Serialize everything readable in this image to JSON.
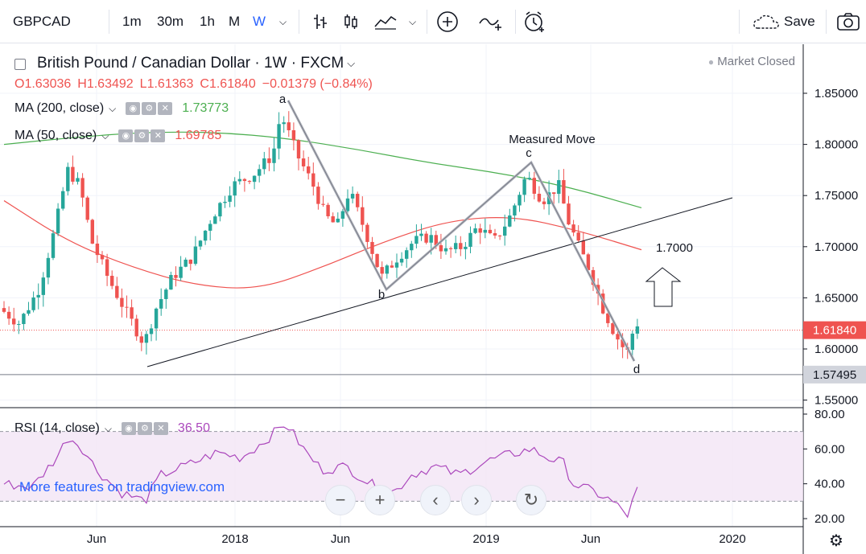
{
  "toolbar": {
    "symbol": "GBPCAD",
    "intervals": [
      "1m",
      "30m",
      "1h",
      "M",
      "W"
    ],
    "active_interval": "W",
    "save_label": "Save"
  },
  "header": {
    "title": "British Pound / Canadian Dollar · 1W · FXCM",
    "market_status": "Market Closed",
    "ohlc": {
      "open": "O1.63036",
      "high": "H1.63492",
      "low": "L1.61363",
      "close": "C1.61840",
      "change": "−0.01379 (−0.84%)"
    }
  },
  "indicators": {
    "ma200": {
      "label": "MA (200, close)",
      "value": "1.73773",
      "color": "#4caf50"
    },
    "ma50": {
      "label": "MA (50, close)",
      "value": "1.69785",
      "color": "#ef5350"
    },
    "rsi": {
      "label": "RSI (14, close)",
      "value": "36.50",
      "color": "#ab47bc"
    }
  },
  "annotations": {
    "a": "a",
    "b": "b",
    "c": "c",
    "d": "d",
    "measured_move": "Measured Move",
    "target": "1.7000"
  },
  "price_axis": {
    "ticks": [
      "1.85000",
      "1.80000",
      "1.75000",
      "1.70000",
      "1.65000",
      "1.60000",
      "1.55000"
    ],
    "last_price": "1.61840",
    "last_price_color": "#ef5350",
    "marker_price": "1.57495"
  },
  "rsi_axis": {
    "ticks": [
      "80.00",
      "60.00",
      "40.00",
      "20.00"
    ]
  },
  "time_axis": {
    "ticks": [
      "Jun",
      "2018",
      "Jun",
      "2019",
      "Jun",
      "2020"
    ]
  },
  "watermark": "More features on tradingview.com",
  "chart_data": {
    "type": "candlestick",
    "title": "British Pound / Canadian Dollar · 1W · FXCM",
    "ylim": [
      1.54,
      1.87
    ],
    "series": [
      {
        "name": "MA (200, close)",
        "values": [
          1.8,
          1.807,
          1.812,
          1.812,
          1.806,
          1.795,
          1.782,
          1.772,
          1.758,
          1.738
        ]
      },
      {
        "name": "MA (50, close)",
        "values": [
          1.745,
          1.705,
          1.68,
          1.662,
          1.658,
          1.68,
          1.706,
          1.726,
          1.73,
          1.716,
          1.697
        ]
      }
    ],
    "price_range": {
      "high": 1.845,
      "low": 1.578,
      "last": 1.6184
    },
    "rsi": {
      "ylim": [
        15,
        82
      ],
      "upper": 70,
      "lower": 30,
      "last": 36.5
    }
  }
}
